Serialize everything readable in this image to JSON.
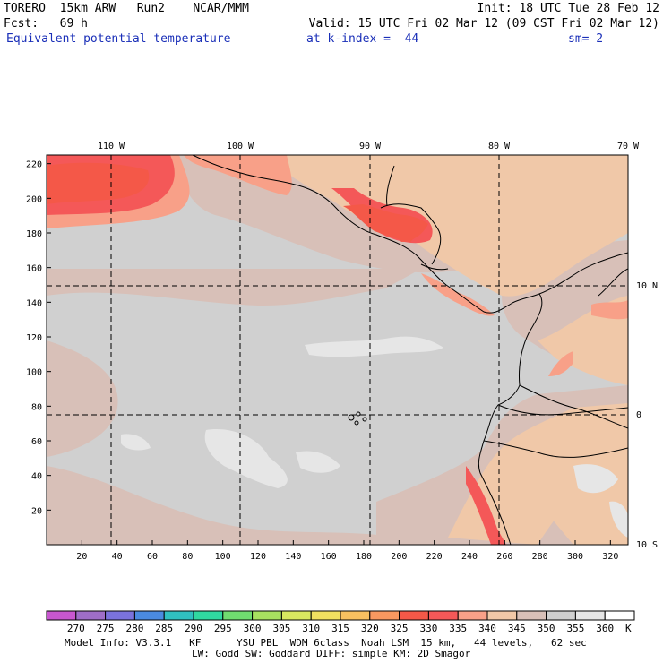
{
  "header": {
    "line1_left": "TORERO  15km ARW   Run2    NCAR/MMM",
    "line1_right": "Init: 18 UTC Tue 28 Feb 12",
    "line2_left": "Fcst:   69 h",
    "line2_right": "Valid: 15 UTC Fri 02 Mar 12 (09 CST Fri 02 Mar 12)",
    "line3_field": "Equivalent potential temperature",
    "line3_level": "at k-index =  44",
    "line3_sm": "sm= 2"
  },
  "map": {
    "lon_labels": [
      "110 W",
      "100 W",
      "90 W",
      "80 W",
      "70 W"
    ],
    "lat_labels": [
      "10 N",
      "0",
      "10 S"
    ],
    "x_ticks": [
      "20",
      "40",
      "60",
      "80",
      "100",
      "120",
      "140",
      "160",
      "180",
      "200",
      "220",
      "240",
      "260",
      "280",
      "300",
      "320"
    ],
    "y_ticks": [
      "20",
      "40",
      "60",
      "80",
      "100",
      "120",
      "140",
      "160",
      "180",
      "200",
      "220"
    ]
  },
  "colorbar": {
    "labels": [
      "270",
      "275",
      "280",
      "285",
      "290",
      "295",
      "300",
      "305",
      "310",
      "315",
      "320",
      "325",
      "330",
      "335",
      "340",
      "345",
      "350",
      "355",
      "360"
    ],
    "unit": "K",
    "colors": [
      "#c857d0",
      "#9e6ec8",
      "#7a72dc",
      "#4a8ae0",
      "#30c0c0",
      "#30d8a0",
      "#70dc70",
      "#a8e060",
      "#d8e860",
      "#f0e060",
      "#f8c060",
      "#f89860",
      "#f45848",
      "#f45858",
      "#f8a088",
      "#f0c8a8",
      "#d8c0b8",
      "#d0d0d0",
      "#e6e6e6",
      "#ffffff"
    ]
  },
  "footer": {
    "line1": "Model Info: V3.3.1   KF      YSU PBL  WDM 6class  Noah LSM  15 km,   44 levels,   62 sec",
    "line2": "LW: Godd SW: Goddard DIFF: simple KM: 2D Smagor"
  }
}
